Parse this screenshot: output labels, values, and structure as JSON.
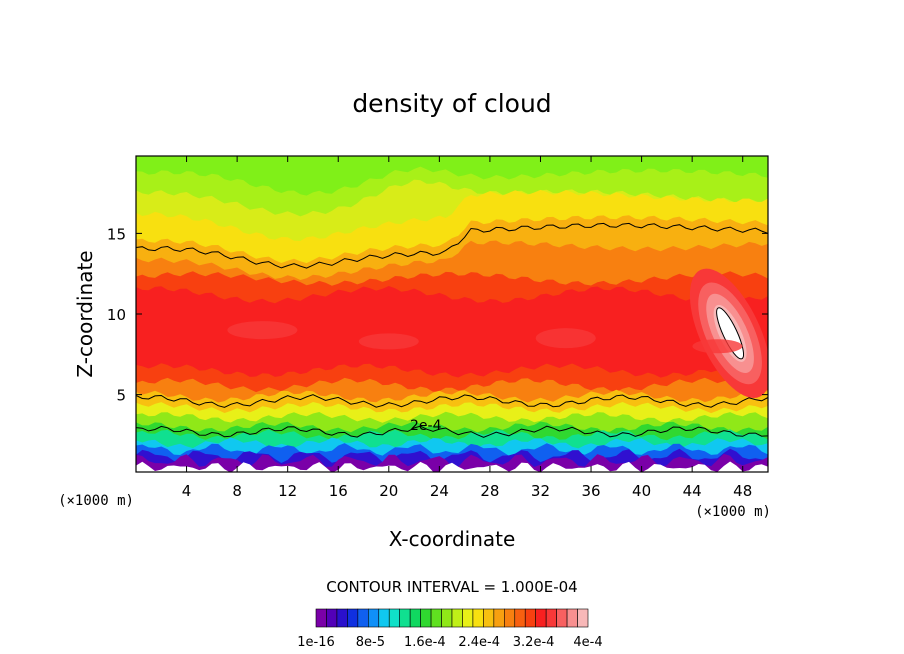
{
  "chart_data": {
    "type": "heatmap",
    "title": "density of cloud",
    "xlabel": "X-coordinate",
    "ylabel": "Z-coordinate",
    "x_unit_label": "(×1000 m)",
    "x_unit_label_right": "(×1000 m)",
    "xlim": [
      0,
      50
    ],
    "ylim": [
      0.2,
      19.8
    ],
    "x_ticks": [
      4,
      8,
      12,
      16,
      20,
      24,
      28,
      32,
      36,
      40,
      44,
      48
    ],
    "x_tick_labels": [
      "4",
      "8",
      "12",
      "16",
      "20",
      "24",
      "28",
      "32",
      "36",
      "40",
      "44",
      "48"
    ],
    "y_ticks": [
      5,
      10,
      15
    ],
    "y_tick_labels": [
      "5",
      "10",
      "15"
    ],
    "contour_interval_text": "CONTOUR INTERVAL = 1.000E-04",
    "contour_label": "2e-4",
    "colorbar": {
      "colors": [
        "#7a00a8",
        "#5200b8",
        "#2a10cc",
        "#1030e0",
        "#1060f0",
        "#1090f8",
        "#10c8f0",
        "#10e0c8",
        "#10e090",
        "#10d860",
        "#30d830",
        "#60e020",
        "#90e818",
        "#c0f018",
        "#e8f018",
        "#f8e010",
        "#f8c010",
        "#f8a010",
        "#f88010",
        "#f86010",
        "#f84010",
        "#f82020",
        "#f83838",
        "#f86060",
        "#f89090",
        "#f8b8b8"
      ],
      "tick_labels": [
        "1e-16",
        "8e-5",
        "1.6e-4",
        "2.4e-4",
        "3.2e-4",
        "4e-4"
      ]
    },
    "layers": [
      {
        "z_top": 19.8,
        "level": "lime green",
        "color": "#80f018",
        "value": "~1.4e-4"
      },
      {
        "z_top": 18.5,
        "level": "yellow-green",
        "color": "#c8f018",
        "value": "~1.7e-4"
      },
      {
        "z_top": 16.5,
        "level": "yellow",
        "color": "#f0e818",
        "value": "~2.0e-4"
      },
      {
        "z_top": 14.5,
        "level": "orange",
        "color": "#f8b010",
        "value": "~2.4e-4"
      },
      {
        "z_top": 12.0,
        "level": "red",
        "color": "#f82020",
        "value": "~3.2e-4"
      },
      {
        "z_top": 5.0,
        "level": "orange-yellow",
        "color": "#f8c010",
        "value": "~2.2e-4"
      },
      {
        "z_top": 3.0,
        "level": "green-cyan",
        "color": "#10e090",
        "value": "~1.0e-4"
      },
      {
        "z_top": 1.5,
        "level": "blue-purple",
        "color": "#3010d0",
        "value": "~1e-16"
      }
    ],
    "maximum": {
      "x": 47,
      "z": 8.8,
      "value": "~4e-4"
    }
  }
}
